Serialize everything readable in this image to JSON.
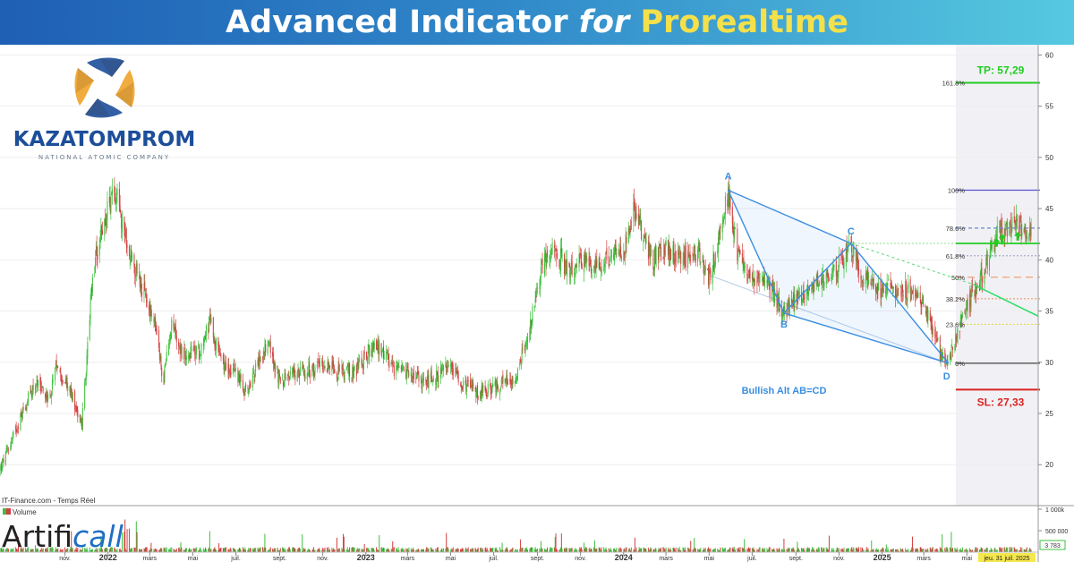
{
  "banner": {
    "part1": "Advanced Indicator ",
    "part2": "for",
    "part3": " Prorealtime"
  },
  "logo": {
    "word": "KAZATOMPROM",
    "sub": "NATIONAL ATOMIC COMPANY"
  },
  "brand": {
    "part1": "Artifi",
    "part2": "call"
  },
  "colors": {
    "up": "#3fbf3f",
    "down": "#d24040",
    "pattern": "#3a8ee0",
    "tp": "#22cc22",
    "sl": "#dd2222"
  },
  "chart_data": {
    "type": "candlestick",
    "source_label": "IT-Finance.com - Temps Réel",
    "ylim": [
      16,
      61
    ],
    "y_ticks": [
      20,
      25,
      30,
      35,
      40,
      45,
      50,
      55,
      60
    ],
    "x_range": [
      "2021-08-01",
      "2025-08-10"
    ],
    "x_ticks": [
      {
        "date": "2021-11-01",
        "label": "nov.",
        "bold": false
      },
      {
        "date": "2022-01-01",
        "label": "2022",
        "bold": true
      },
      {
        "date": "2022-03-01",
        "label": "mars",
        "bold": false
      },
      {
        "date": "2022-05-01",
        "label": "mai",
        "bold": false
      },
      {
        "date": "2022-07-01",
        "label": "juil.",
        "bold": false
      },
      {
        "date": "2022-09-01",
        "label": "sept.",
        "bold": false
      },
      {
        "date": "2022-11-01",
        "label": "nov.",
        "bold": false
      },
      {
        "date": "2023-01-01",
        "label": "2023",
        "bold": true
      },
      {
        "date": "2023-03-01",
        "label": "mars",
        "bold": false
      },
      {
        "date": "2023-05-01",
        "label": "mai",
        "bold": false
      },
      {
        "date": "2023-07-01",
        "label": "juil.",
        "bold": false
      },
      {
        "date": "2023-09-01",
        "label": "sept.",
        "bold": false
      },
      {
        "date": "2023-11-01",
        "label": "nov.",
        "bold": false
      },
      {
        "date": "2024-01-01",
        "label": "2024",
        "bold": true
      },
      {
        "date": "2024-03-01",
        "label": "mars",
        "bold": false
      },
      {
        "date": "2024-05-01",
        "label": "mai",
        "bold": false
      },
      {
        "date": "2024-07-01",
        "label": "juil.",
        "bold": false
      },
      {
        "date": "2024-09-01",
        "label": "sept.",
        "bold": false
      },
      {
        "date": "2024-11-01",
        "label": "nov.",
        "bold": false
      },
      {
        "date": "2025-01-01",
        "label": "2025",
        "bold": true
      },
      {
        "date": "2025-03-01",
        "label": "mars",
        "bold": false
      },
      {
        "date": "2025-05-01",
        "label": "mai",
        "bold": false
      }
    ],
    "price_path": [
      [
        "2021-08-01",
        19.5
      ],
      [
        "2021-09-01",
        25
      ],
      [
        "2021-09-20",
        28
      ],
      [
        "2021-10-10",
        26.5
      ],
      [
        "2021-10-20",
        29.5
      ],
      [
        "2021-11-10",
        27
      ],
      [
        "2021-11-25",
        24
      ],
      [
        "2021-12-10",
        38
      ],
      [
        "2021-12-20",
        42
      ],
      [
        "2022-01-05",
        46
      ],
      [
        "2022-01-15",
        47
      ],
      [
        "2022-01-20",
        44
      ],
      [
        "2022-02-05",
        40
      ],
      [
        "2022-02-20",
        37
      ],
      [
        "2022-03-10",
        33
      ],
      [
        "2022-03-20",
        28
      ],
      [
        "2022-04-01",
        34
      ],
      [
        "2022-04-15",
        31
      ],
      [
        "2022-05-10",
        31
      ],
      [
        "2022-05-25",
        34
      ],
      [
        "2022-06-10",
        30
      ],
      [
        "2022-07-01",
        29
      ],
      [
        "2022-07-15",
        27
      ],
      [
        "2022-08-01",
        30
      ],
      [
        "2022-08-15",
        32
      ],
      [
        "2022-09-01",
        28
      ],
      [
        "2022-09-20",
        29
      ],
      [
        "2022-10-15",
        29
      ],
      [
        "2022-11-01",
        30
      ],
      [
        "2022-11-20",
        29
      ],
      [
        "2022-12-15",
        29
      ],
      [
        "2023-01-05",
        31
      ],
      [
        "2023-01-20",
        31.5
      ],
      [
        "2023-02-10",
        29
      ],
      [
        "2023-03-01",
        29
      ],
      [
        "2023-03-20",
        28
      ],
      [
        "2023-04-10",
        28.5
      ],
      [
        "2023-05-01",
        29.5
      ],
      [
        "2023-05-20",
        28
      ],
      [
        "2023-06-10",
        27
      ],
      [
        "2023-07-01",
        27.5
      ],
      [
        "2023-08-01",
        28.5
      ],
      [
        "2023-08-20",
        33
      ],
      [
        "2023-09-10",
        40
      ],
      [
        "2023-09-25",
        41
      ],
      [
        "2023-10-15",
        39
      ],
      [
        "2023-11-01",
        40
      ],
      [
        "2023-11-20",
        39.5
      ],
      [
        "2023-12-10",
        40
      ],
      [
        "2024-01-01",
        41
      ],
      [
        "2024-01-15",
        45
      ],
      [
        "2024-01-25",
        43
      ],
      [
        "2024-02-10",
        40
      ],
      [
        "2024-03-01",
        41
      ],
      [
        "2024-03-20",
        40
      ],
      [
        "2024-04-15",
        41
      ],
      [
        "2024-05-01",
        38
      ],
      [
        "2024-05-20",
        44
      ],
      [
        "2024-05-28",
        46.5
      ],
      [
        "2024-06-10",
        41
      ],
      [
        "2024-06-25",
        38.5
      ],
      [
        "2024-07-15",
        38
      ],
      [
        "2024-08-01",
        36.5
      ],
      [
        "2024-08-15",
        35
      ],
      [
        "2024-09-01",
        36
      ],
      [
        "2024-09-20",
        37.5
      ],
      [
        "2024-10-10",
        38
      ],
      [
        "2024-10-25",
        39
      ],
      [
        "2024-11-05",
        40
      ],
      [
        "2024-11-18",
        41.5
      ],
      [
        "2024-12-05",
        38.5
      ],
      [
        "2024-12-20",
        37
      ],
      [
        "2025-01-10",
        37.5
      ],
      [
        "2025-01-25",
        37
      ],
      [
        "2025-02-15",
        37
      ],
      [
        "2025-03-01",
        35.5
      ],
      [
        "2025-03-15",
        33
      ],
      [
        "2025-03-25",
        30.5
      ],
      [
        "2025-04-05",
        30
      ],
      [
        "2025-04-20",
        33.5
      ],
      [
        "2025-05-05",
        36
      ],
      [
        "2025-05-20",
        38
      ],
      [
        "2025-06-05",
        41.5
      ],
      [
        "2025-06-20",
        43
      ],
      [
        "2025-07-05",
        43.5
      ],
      [
        "2025-07-20",
        43
      ],
      [
        "2025-07-31",
        43.2
      ]
    ],
    "pattern": {
      "name": "Bullish Alt AB=CD",
      "points": [
        {
          "label": "A",
          "date": "2024-05-28",
          "price": 46.8
        },
        {
          "label": "B",
          "date": "2024-08-15",
          "price": 34.8
        },
        {
          "label": "C",
          "date": "2024-11-18",
          "price": 41.6
        },
        {
          "label": "D",
          "date": "2025-04-05",
          "price": 29.9
        }
      ],
      "x_prime_start": {
        "date": "2024-05-01",
        "price": 38.5
      }
    },
    "fib_levels": [
      {
        "label": "161.8%",
        "price": 57.29,
        "color": "#22cc22",
        "dash": "none"
      },
      {
        "label": "100%",
        "price": 46.8,
        "color": "#5555cc",
        "dash": "none"
      },
      {
        "label": "78.6%",
        "price": 43.1,
        "color": "#6688cc",
        "dash": "4,3"
      },
      {
        "label": "61.8%",
        "price": 40.4,
        "color": "#aaaacc",
        "dash": "2,2"
      },
      {
        "label": "50%",
        "price": 38.3,
        "color": "#ee9966",
        "dash": "8,5"
      },
      {
        "label": "38.2%",
        "price": 36.2,
        "color": "#ee9966",
        "dash": "2,2"
      },
      {
        "label": "23.6%",
        "price": 33.7,
        "color": "#dddd55",
        "dash": "2,2"
      },
      {
        "label": "0%",
        "price": 29.9,
        "color": "#333333",
        "dash": "none"
      }
    ],
    "tp": {
      "label": "TP: 57,29",
      "price": 57.29
    },
    "sl": {
      "label": "SL: 27,33",
      "price": 27.33
    },
    "c_level": 41.6,
    "trend_line": {
      "start": {
        "date": "2025-05-10",
        "price": 37.6
      },
      "end": {
        "date": "2025-08-10",
        "price": 34.5
      }
    },
    "arrows": [
      {
        "date": "2025-06-12",
        "price": 41.8
      },
      {
        "date": "2025-06-20",
        "price": 42.2
      },
      {
        "date": "2025-07-12",
        "price": 42.4
      }
    ],
    "volume": {
      "legend": "Volume",
      "y_ticks": [
        {
          "value": 1000000,
          "label": "1 000k"
        },
        {
          "value": 500000,
          "label": "500 000"
        }
      ],
      "ymax": 1000000,
      "current_label": "3 783"
    },
    "current_date_label": "jeu. 31 juil. 2025"
  }
}
